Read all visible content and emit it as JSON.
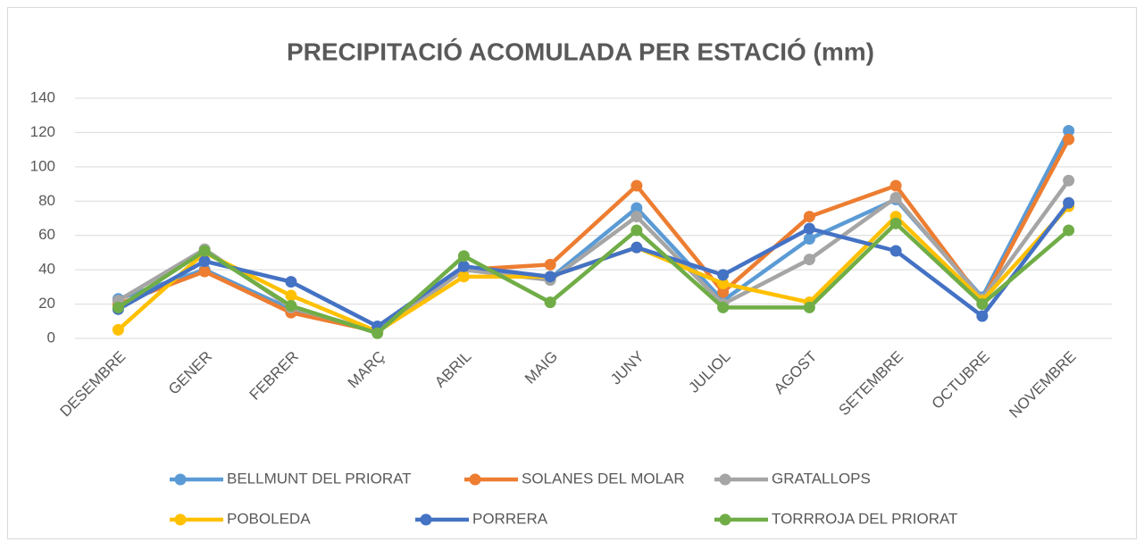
{
  "chart_data": {
    "type": "line",
    "title": "PRECIPITACIÓ ACOMULADA PER ESTACIÓ (mm)",
    "categories": [
      "DESEMBRE",
      "GENER",
      "FEBRER",
      "MARÇ",
      "ABRIL",
      "MAIG",
      "JUNY",
      "JULIOL",
      "AGOST",
      "SETEMBRE",
      "OCTUBRE",
      "NOVEMBRE"
    ],
    "series": [
      {
        "name": "BELLMUNT DEL PRIORAT",
        "color": "#5b9bd5",
        "values": [
          23,
          40,
          17,
          4,
          40,
          35,
          76,
          22,
          58,
          81,
          24,
          121
        ]
      },
      {
        "name": "SOLANES DEL MOLAR",
        "color": "#ed7d31",
        "values": [
          20,
          39,
          15,
          4,
          40,
          43,
          89,
          27,
          71,
          89,
          22,
          116
        ]
      },
      {
        "name": "GRATALLOPS",
        "color": "#a5a5a5",
        "values": [
          22,
          52,
          18,
          4,
          40,
          34,
          71,
          20,
          46,
          82,
          23,
          92
        ]
      },
      {
        "name": "POBOLEDA",
        "color": "#ffc000",
        "values": [
          5,
          50,
          25,
          4,
          36,
          36,
          53,
          32,
          21,
          71,
          22,
          77
        ]
      },
      {
        "name": "PORRERA",
        "color": "#4472c4",
        "values": [
          17,
          45,
          33,
          7,
          42,
          36,
          53,
          37,
          64,
          51,
          13,
          79
        ]
      },
      {
        "name": "TORRROJA DEL PRIORAT",
        "color": "#70ad47",
        "values": [
          18,
          51,
          19,
          3,
          48,
          21,
          63,
          18,
          18,
          67,
          20,
          63
        ]
      }
    ],
    "ylim": [
      0,
      140
    ],
    "yticks": [
      0,
      20,
      40,
      60,
      80,
      100,
      120,
      140
    ],
    "grid": true,
    "legend": "bottom"
  }
}
